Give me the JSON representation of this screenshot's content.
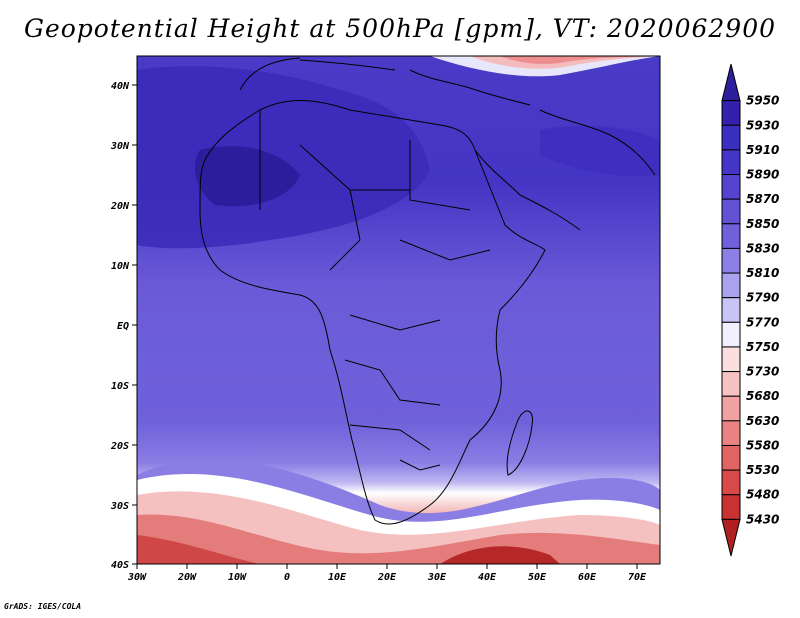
{
  "title": "Geopotential Height at 500hPa [gpm], VT: 2020062900",
  "credit": "GrADS: IGES/COLA",
  "map": {
    "lon_labels": [
      "30W",
      "20W",
      "10W",
      "0",
      "10E",
      "20E",
      "30E",
      "40E",
      "50E",
      "60E",
      "70E"
    ],
    "lat_labels": [
      "40N",
      "30N",
      "20N",
      "10N",
      "EQ",
      "10S",
      "20S",
      "30S",
      "40S"
    ]
  },
  "colorbar": {
    "levels": [
      "5950",
      "5930",
      "5910",
      "5890",
      "5870",
      "5850",
      "5830",
      "5810",
      "5790",
      "5770",
      "5750",
      "5730",
      "5680",
      "5630",
      "5580",
      "5530",
      "5480",
      "5430"
    ],
    "colors": [
      "#2d1f9c",
      "#3320ad",
      "#3a2fbf",
      "#4636c8",
      "#5444d0",
      "#6252d6",
      "#7060dc",
      "#8c80e6",
      "#a9a2ee",
      "#c8c4f5",
      "#f2f0ff",
      "#fbdede",
      "#f6c2c2",
      "#f0a2a2",
      "#ea8282",
      "#e16464",
      "#d84a4a",
      "#c83232",
      "#b02020"
    ]
  }
}
